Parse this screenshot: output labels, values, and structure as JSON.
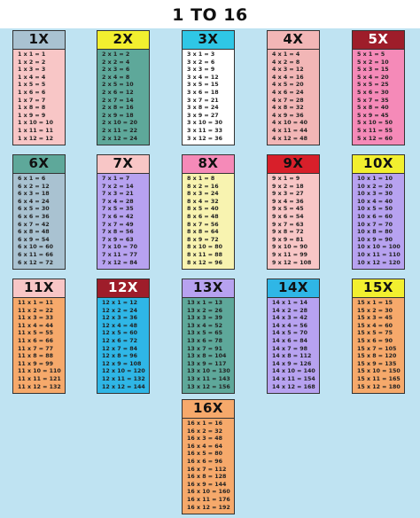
{
  "title": "1 TO 16",
  "tables": [
    {
      "label": "1X",
      "n": 1,
      "head_bg": "#a9c2d1",
      "head_fg": "#111",
      "body_bg": "#f8c6c6"
    },
    {
      "label": "2X",
      "n": 2,
      "head_bg": "#f2ef2f",
      "head_fg": "#111",
      "body_bg": "#5ea89a"
    },
    {
      "label": "3X",
      "n": 3,
      "head_bg": "#2fc7e6",
      "head_fg": "#111",
      "body_bg": "#ffffff"
    },
    {
      "label": "4X",
      "n": 4,
      "head_bg": "#f2b6b6",
      "head_fg": "#111",
      "body_bg": "#f2b6b6"
    },
    {
      "label": "5X",
      "n": 5,
      "head_bg": "#9e1d2a",
      "head_fg": "#fff",
      "body_bg": "#f58ab8"
    },
    {
      "label": "6X",
      "n": 6,
      "head_bg": "#5ea89a",
      "head_fg": "#111",
      "body_bg": "#a9c2d1"
    },
    {
      "label": "7X",
      "n": 7,
      "head_bg": "#f8c6c6",
      "head_fg": "#111",
      "body_bg": "#b7a2f0"
    },
    {
      "label": "8X",
      "n": 8,
      "head_bg": "#f58ab8",
      "head_fg": "#111",
      "body_bg": "#f8f3b0"
    },
    {
      "label": "9X",
      "n": 9,
      "head_bg": "#d81f2a",
      "head_fg": "#111",
      "body_bg": "#f8c6c6"
    },
    {
      "label": "10X",
      "n": 10,
      "head_bg": "#f2ef2f",
      "head_fg": "#111",
      "body_bg": "#b7a2f0"
    },
    {
      "label": "11X",
      "n": 11,
      "head_bg": "#f8c6c6",
      "head_fg": "#111",
      "body_bg": "#f6a96b"
    },
    {
      "label": "12X",
      "n": 12,
      "head_bg": "#9e1d2a",
      "head_fg": "#fff",
      "body_bg": "#2fb6e6"
    },
    {
      "label": "13X",
      "n": 13,
      "head_bg": "#b7a2f0",
      "head_fg": "#111",
      "body_bg": "#5ea89a"
    },
    {
      "label": "14X",
      "n": 14,
      "head_bg": "#2fb6e6",
      "head_fg": "#111",
      "body_bg": "#b7a2f0"
    },
    {
      "label": "15X",
      "n": 15,
      "head_bg": "#f2ef2f",
      "head_fg": "#111",
      "body_bg": "#f6a96b"
    },
    {
      "label": "16X",
      "n": 16,
      "head_bg": "#f6a96b",
      "head_fg": "#111",
      "body_bg": "#f6a96b"
    }
  ]
}
